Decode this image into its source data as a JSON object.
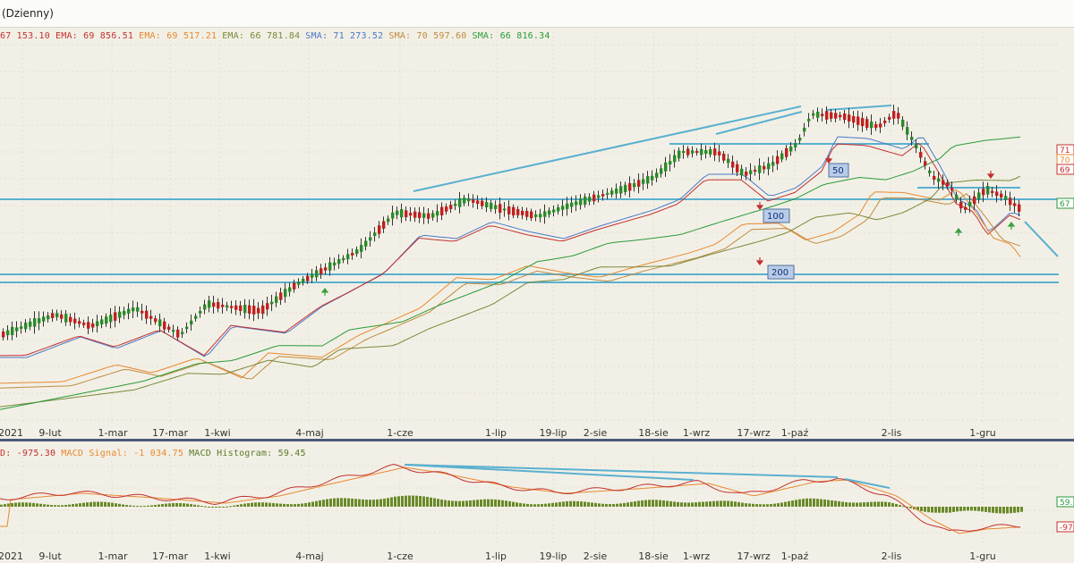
{
  "window": {
    "title": "(Dzienny)"
  },
  "legend": [
    {
      "text": "67 153.10",
      "color": "#c43030"
    },
    {
      "text": "EMA: 69 856.51",
      "color": "#c43030"
    },
    {
      "text": "EMA: 69 517.21",
      "color": "#e88830"
    },
    {
      "text": "EMA: 66 781.84",
      "color": "#7a8a3a"
    },
    {
      "text": "SMA: 71 273.52",
      "color": "#4a78c8"
    },
    {
      "text": "SMA: 70 597.60",
      "color": "#c08a40"
    },
    {
      "text": "SMA: 66 816.34",
      "color": "#2a9a3a"
    }
  ],
  "macd_legend": [
    {
      "text": "D: -975.30",
      "color": "#c43030"
    },
    {
      "text": "MACD Signal: -1 034.75",
      "color": "#e88830"
    },
    {
      "text": "MACD Histogram: 59.45",
      "color": "#5a7a2a"
    }
  ],
  "x_axis_labels": [
    "2021",
    "9-lut",
    "1-mar",
    "17-mar",
    "1-kwi",
    "4-maj",
    "1-cze",
    "1-lip",
    "19-lip",
    "2-sie",
    "18-sie",
    "1-wrz",
    "17-wrz",
    "1-paź",
    "2-lis",
    "1-gru"
  ],
  "ma_markers": [
    "50",
    "100",
    "200"
  ],
  "right_labels": {
    "main": [
      "71",
      "70",
      "69",
      "67"
    ],
    "macd": [
      "59.",
      "-97"
    ]
  },
  "colors": {
    "background": "#f2f0e6",
    "grid": "#e2ded0",
    "bull_candle": "#2a8a2a",
    "bear_candle": "#c02020",
    "trend_line": "#5ab0d0",
    "marker_box": "#b8cce8"
  }
}
